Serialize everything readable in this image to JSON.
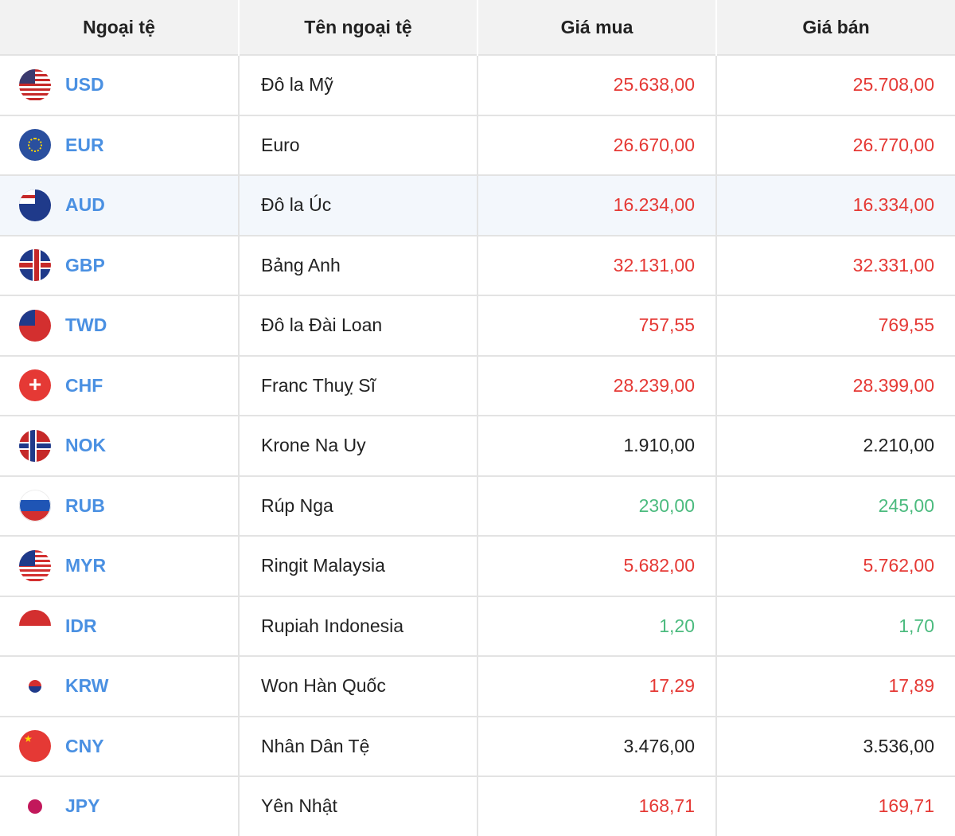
{
  "headers": [
    "Ngoại tệ",
    "Tên ngoại tệ",
    "Giá mua",
    "Giá bán"
  ],
  "colors": {
    "up": "#e53935",
    "down": "#4cbb7f",
    "neutral": "#222222",
    "code": "#4a90e2"
  },
  "rows": [
    {
      "code": "USD",
      "name": "Đô la Mỹ",
      "buy": "25.638,00",
      "sell": "25.708,00",
      "trend": "red",
      "flag": "us-flag-icon"
    },
    {
      "code": "EUR",
      "name": "Euro",
      "buy": "26.670,00",
      "sell": "26.770,00",
      "trend": "red",
      "flag": "eu-flag-icon"
    },
    {
      "code": "AUD",
      "name": "Đô la Úc",
      "buy": "16.234,00",
      "sell": "16.334,00",
      "trend": "red",
      "flag": "au-flag-icon"
    },
    {
      "code": "GBP",
      "name": "Bảng Anh",
      "buy": "32.131,00",
      "sell": "32.331,00",
      "trend": "red",
      "flag": "gb-flag-icon"
    },
    {
      "code": "TWD",
      "name": "Đô la Đài Loan",
      "buy": "757,55",
      "sell": "769,55",
      "trend": "red",
      "flag": "tw-flag-icon"
    },
    {
      "code": "CHF",
      "name": "Franc Thuỵ Sĩ",
      "buy": "28.239,00",
      "sell": "28.399,00",
      "trend": "red",
      "flag": "ch-flag-icon"
    },
    {
      "code": "NOK",
      "name": "Krone Na Uy",
      "buy": "1.910,00",
      "sell": "2.210,00",
      "trend": "black",
      "flag": "no-flag-icon"
    },
    {
      "code": "RUB",
      "name": "Rúp Nga",
      "buy": "230,00",
      "sell": "245,00",
      "trend": "green",
      "flag": "ru-flag-icon"
    },
    {
      "code": "MYR",
      "name": "Ringit Malaysia",
      "buy": "5.682,00",
      "sell": "5.762,00",
      "trend": "red",
      "flag": "my-flag-icon"
    },
    {
      "code": "IDR",
      "name": "Rupiah Indonesia",
      "buy": "1,20",
      "sell": "1,70",
      "trend": "green",
      "flag": "id-flag-icon"
    },
    {
      "code": "KRW",
      "name": "Won Hàn Quốc",
      "buy": "17,29",
      "sell": "17,89",
      "trend": "red",
      "flag": "kr-flag-icon"
    },
    {
      "code": "CNY",
      "name": "Nhân Dân Tệ",
      "buy": "3.476,00",
      "sell": "3.536,00",
      "trend": "black",
      "flag": "cn-flag-icon"
    },
    {
      "code": "JPY",
      "name": "Yên Nhật",
      "buy": "168,71",
      "sell": "169,71",
      "trend": "red",
      "flag": "jp-flag-icon"
    }
  ]
}
